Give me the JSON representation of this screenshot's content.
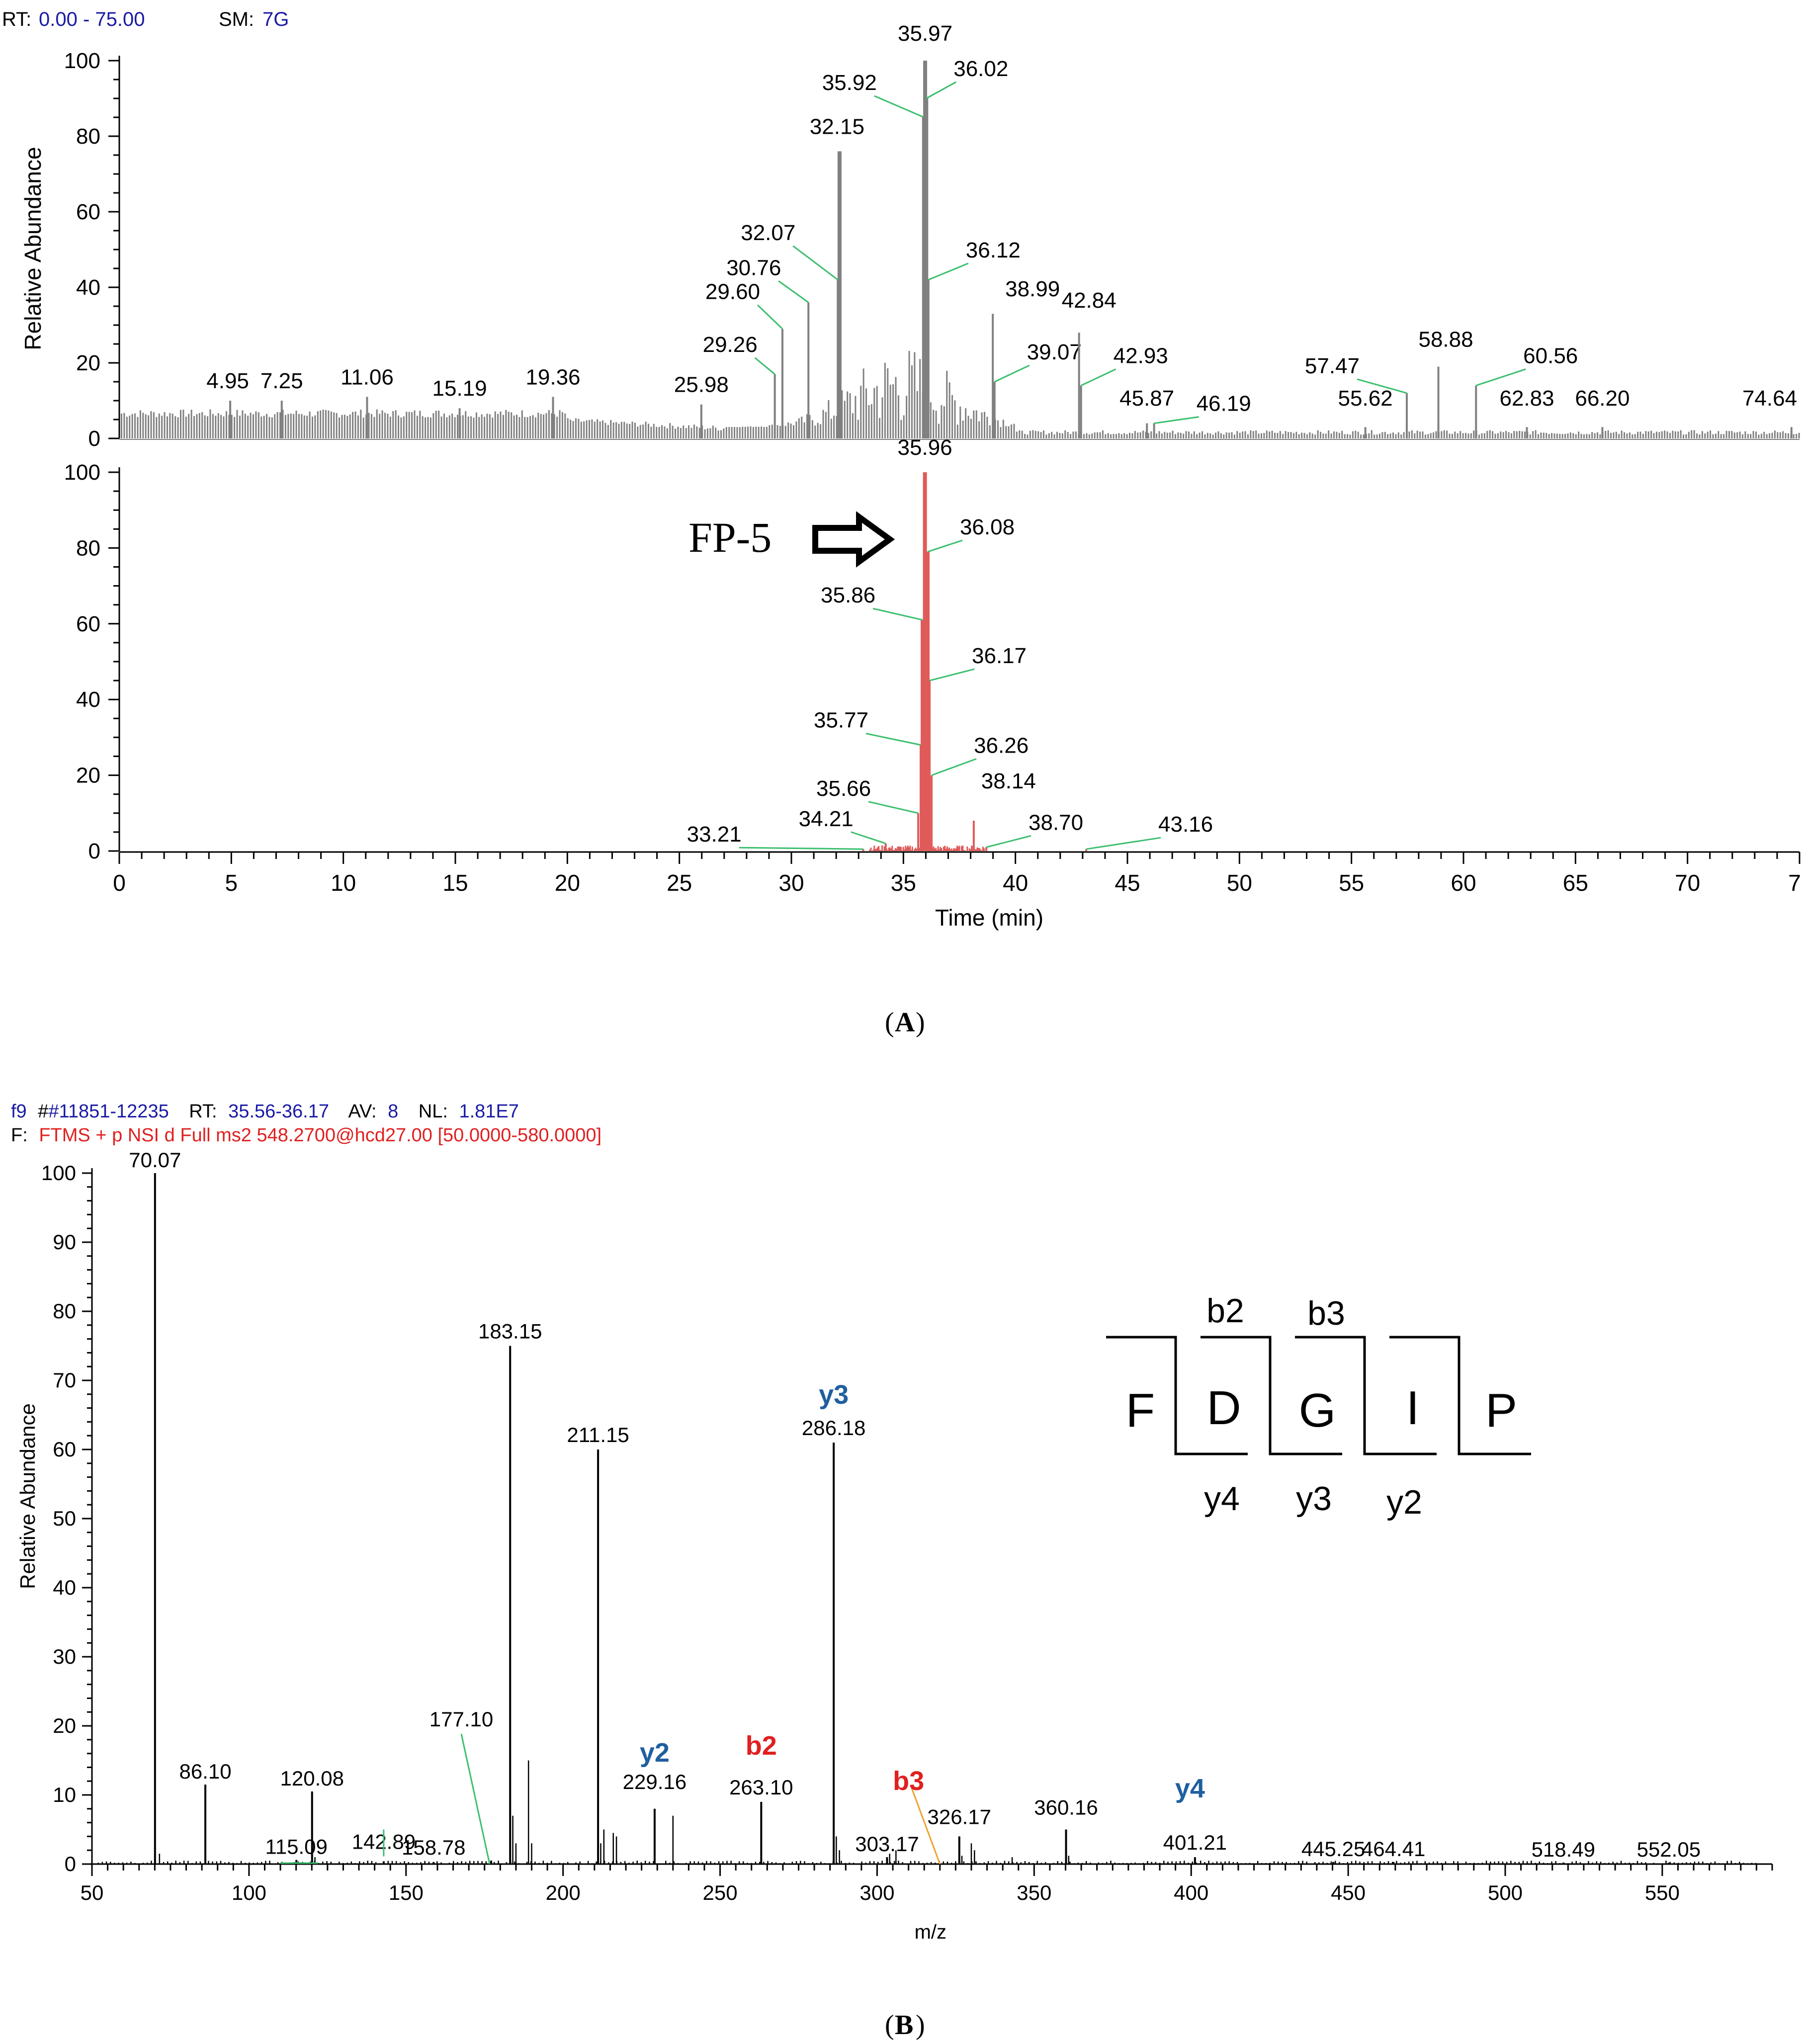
{
  "panel_a": {
    "caption": "A",
    "header": {
      "rt_label": "RT:",
      "rt_value": "0.00 - 75.00",
      "sm_label": "SM:",
      "sm_value": "7G"
    },
    "annotation": {
      "text": "FP-5"
    },
    "colors": {
      "upper_trace": "#808080",
      "lower_trace": "#e05a5a",
      "header_value": "#1a1aa6",
      "leader": "#3cbf6e"
    }
  },
  "panel_b": {
    "caption": "B",
    "header": {
      "line1_prefix": "f9",
      "line1_scan": "#11851-12235",
      "line1_rt_label": "RT:",
      "line1_rt_value": "35.56-36.17",
      "line1_av_label": "AV:",
      "line1_av_value": "8",
      "line1_nl_label": "NL:",
      "line1_nl_value": "1.81E7",
      "line2_prefix": "F:",
      "line2_filter": "FTMS + p NSI d Full ms2 548.2700@hcd27.00 [50.0000-580.0000]"
    },
    "peptide": {
      "residues": [
        "F",
        "D",
        "G",
        "I",
        "P"
      ],
      "b_ions": [
        "b2",
        "b3"
      ],
      "y_ions": [
        "y4",
        "y3",
        "y2"
      ]
    },
    "colors": {
      "y_ion": "#1f5f9f",
      "b_ion": "#e02020",
      "filter": "#e02020",
      "scan": "#1a1aa6"
    }
  },
  "chart_data": [
    {
      "type": "line",
      "name": "chromatogram-upper",
      "xlabel": "Time (min)",
      "ylabel": "Relative Abundance",
      "xlim": [
        0,
        75
      ],
      "ylim": [
        0,
        100
      ],
      "xticks": [
        "0",
        "5",
        "10",
        "15",
        "20",
        "25",
        "30",
        "35",
        "40",
        "45",
        "50",
        "55",
        "60",
        "65",
        "70",
        "7"
      ],
      "yticks": [
        "0",
        "20",
        "40",
        "60",
        "80",
        "100"
      ],
      "peaks": [
        {
          "x": 4.95,
          "y": 10,
          "label": "4.95"
        },
        {
          "x": 7.25,
          "y": 10,
          "label": "7.25"
        },
        {
          "x": 11.06,
          "y": 11,
          "label": "11.06"
        },
        {
          "x": 15.19,
          "y": 8,
          "label": "15.19"
        },
        {
          "x": 19.36,
          "y": 11,
          "label": "19.36"
        },
        {
          "x": 25.98,
          "y": 9,
          "label": "25.98"
        },
        {
          "x": 29.26,
          "y": 17,
          "label": "29.26"
        },
        {
          "x": 29.6,
          "y": 29,
          "label": "29.60"
        },
        {
          "x": 30.76,
          "y": 36,
          "label": "30.76"
        },
        {
          "x": 32.07,
          "y": 42,
          "label": "32.07"
        },
        {
          "x": 32.15,
          "y": 76,
          "label": "32.15"
        },
        {
          "x": 35.92,
          "y": 85,
          "label": "35.92"
        },
        {
          "x": 35.97,
          "y": 100,
          "label": "35.97"
        },
        {
          "x": 36.02,
          "y": 90,
          "label": "36.02"
        },
        {
          "x": 36.12,
          "y": 42,
          "label": "36.12"
        },
        {
          "x": 38.99,
          "y": 33,
          "label": "38.99"
        },
        {
          "x": 39.07,
          "y": 15,
          "label": "39.07"
        },
        {
          "x": 42.84,
          "y": 28,
          "label": "42.84"
        },
        {
          "x": 42.93,
          "y": 14,
          "label": "42.93"
        },
        {
          "x": 45.87,
          "y": 4,
          "label": "45.87"
        },
        {
          "x": 46.19,
          "y": 4,
          "label": "46.19"
        },
        {
          "x": 55.62,
          "y": 3,
          "label": "55.62"
        },
        {
          "x": 57.47,
          "y": 12,
          "label": "57.47"
        },
        {
          "x": 58.88,
          "y": 19,
          "label": "58.88"
        },
        {
          "x": 60.56,
          "y": 14,
          "label": "60.56"
        },
        {
          "x": 62.83,
          "y": 3,
          "label": "62.83"
        },
        {
          "x": 66.2,
          "y": 3,
          "label": "66.20"
        },
        {
          "x": 74.64,
          "y": 3,
          "label": "74.64"
        }
      ]
    },
    {
      "type": "line",
      "name": "chromatogram-lower",
      "xlabel": "Time (min)",
      "ylabel": "",
      "xlim": [
        0,
        75
      ],
      "ylim": [
        0,
        100
      ],
      "peaks": [
        {
          "x": 33.21,
          "y": 0.5,
          "label": "33.21"
        },
        {
          "x": 34.21,
          "y": 2,
          "label": "34.21"
        },
        {
          "x": 35.66,
          "y": 10,
          "label": "35.66"
        },
        {
          "x": 35.77,
          "y": 28,
          "label": "35.77"
        },
        {
          "x": 35.86,
          "y": 61,
          "label": "35.86"
        },
        {
          "x": 35.96,
          "y": 100,
          "label": "35.96"
        },
        {
          "x": 36.08,
          "y": 79,
          "label": "36.08"
        },
        {
          "x": 36.17,
          "y": 45,
          "label": "36.17"
        },
        {
          "x": 36.26,
          "y": 20,
          "label": "36.26"
        },
        {
          "x": 38.14,
          "y": 8,
          "label": "38.14"
        },
        {
          "x": 38.7,
          "y": 1,
          "label": "38.70"
        },
        {
          "x": 43.16,
          "y": 0.5,
          "label": "43.16"
        }
      ]
    },
    {
      "type": "bar",
      "name": "ms2-spectrum",
      "xlabel": "m/z",
      "ylabel": "Relative Abundance",
      "xlim": [
        50,
        585
      ],
      "ylim": [
        0,
        100
      ],
      "xticks": [
        "50",
        "100",
        "150",
        "200",
        "250",
        "300",
        "350",
        "400",
        "450",
        "500",
        "550"
      ],
      "yticks": [
        "0",
        "10",
        "20",
        "30",
        "40",
        "50",
        "60",
        "70",
        "80",
        "90",
        "100"
      ],
      "peaks": [
        {
          "mz": 70.07,
          "intensity": 100,
          "label": "70.07"
        },
        {
          "mz": 86.1,
          "intensity": 11.5,
          "label": "86.10"
        },
        {
          "mz": 115.09,
          "intensity": 0.6,
          "label": "115.09"
        },
        {
          "mz": 120.08,
          "intensity": 10.5,
          "label": "120.08"
        },
        {
          "mz": 142.89,
          "intensity": 0.4,
          "label": "142.89"
        },
        {
          "mz": 158.78,
          "intensity": 0.3,
          "label": "158.78"
        },
        {
          "mz": 177.1,
          "intensity": 0.5,
          "label": "177.10"
        },
        {
          "mz": 183.15,
          "intensity": 75,
          "label": "183.15"
        },
        {
          "mz": 211.15,
          "intensity": 60,
          "label": "211.15"
        },
        {
          "mz": 229.16,
          "intensity": 8,
          "label": "229.16",
          "ion": "y2"
        },
        {
          "mz": 263.1,
          "intensity": 9,
          "label": "263.10",
          "ion": "b2"
        },
        {
          "mz": 286.18,
          "intensity": 61,
          "label": "286.18",
          "ion": "y3"
        },
        {
          "mz": 303.17,
          "intensity": 1,
          "label": "303.17"
        },
        {
          "mz": 326.17,
          "intensity": 4,
          "label": "326.17"
        },
        {
          "mz": 360.16,
          "intensity": 5,
          "label": "360.16"
        },
        {
          "mz": 401.21,
          "intensity": 1,
          "label": "401.21",
          "ion": "y4"
        },
        {
          "mz": 445.25,
          "intensity": 0.3,
          "label": "445.25"
        },
        {
          "mz": 464.41,
          "intensity": 0.3,
          "label": "464.41"
        },
        {
          "mz": 518.49,
          "intensity": 0.2,
          "label": "518.49"
        },
        {
          "mz": 552.05,
          "intensity": 0.2,
          "label": "552.05"
        }
      ],
      "ion_labels": [
        {
          "ion": "y2",
          "mz": 229.16
        },
        {
          "ion": "b2",
          "mz": 263.1
        },
        {
          "ion": "y3",
          "mz": 286.18
        },
        {
          "ion": "b3",
          "mz": 319.5
        },
        {
          "ion": "y4",
          "mz": 401.21
        }
      ]
    }
  ]
}
